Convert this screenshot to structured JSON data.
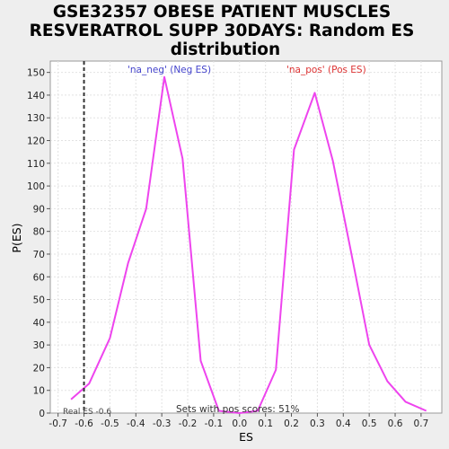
{
  "chart_data": {
    "type": "line",
    "title_lines": [
      "GSE32357 OBESE PATIENT MUSCLES",
      "RESVERATROL SUPP 30DAYS: Random ES",
      "distribution"
    ],
    "xlabel": "ES",
    "ylabel": "P(ES)",
    "xlim": [
      -0.73,
      0.78
    ],
    "ylim": [
      0,
      155
    ],
    "xticks": [
      -0.7,
      -0.6,
      -0.5,
      -0.4,
      -0.3,
      -0.2,
      -0.1,
      0.0,
      0.1,
      0.2,
      0.3,
      0.4,
      0.5,
      0.6,
      0.7
    ],
    "xtick_labels": [
      "-0.7",
      "-0.6",
      "-0.5",
      "-0.4",
      "-0.3",
      "-0.2",
      "-0.1",
      "0.0",
      "0.1",
      "0.2",
      "0.3",
      "0.4",
      "0.5",
      "0.6",
      "0.7"
    ],
    "yticks": [
      0,
      10,
      20,
      30,
      40,
      50,
      60,
      70,
      80,
      90,
      100,
      110,
      120,
      130,
      140,
      150
    ],
    "ytick_labels": [
      "0",
      "10",
      "20",
      "30",
      "40",
      "50",
      "60",
      "70",
      "80",
      "90",
      "100",
      "110",
      "120",
      "130",
      "140",
      "150"
    ],
    "grid": true,
    "series": [
      {
        "color": "#ee44ee",
        "x": [
          -0.65,
          -0.58,
          -0.5,
          -0.43,
          -0.36,
          -0.29,
          -0.22,
          -0.15,
          -0.08,
          0.0,
          0.07,
          0.14,
          0.21,
          0.29,
          0.36,
          0.43,
          0.5,
          0.57,
          0.64,
          0.72
        ],
        "y": [
          6,
          13,
          33,
          66,
          90,
          148,
          112,
          23,
          1,
          0,
          1,
          19,
          116,
          141,
          111,
          71,
          30,
          14,
          5,
          1
        ]
      }
    ],
    "real_es": {
      "value": -0.6,
      "label": "Real ES -0.6",
      "color": "#333333"
    },
    "annotations": {
      "neg_label": "'na_neg' (Neg ES)",
      "neg_color": "#4444cc",
      "pos_label": "'na_pos' (Pos ES)",
      "pos_color": "#dd3333",
      "sets_text": "Sets with pos scores: 51%"
    }
  }
}
